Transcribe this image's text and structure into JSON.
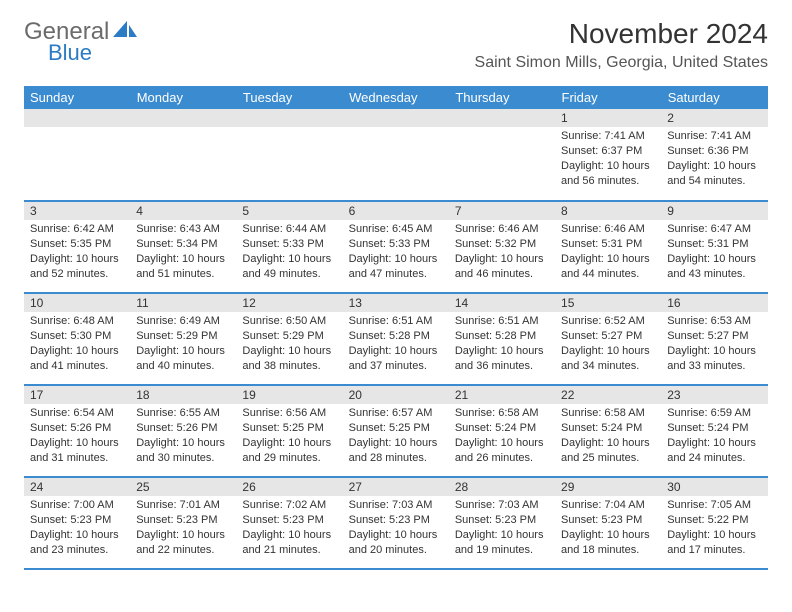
{
  "logo": {
    "general": "General",
    "blue": "Blue",
    "general_color": "#6b6b6b",
    "blue_color": "#2b7cc4",
    "icon_fill": "#2b7cc4"
  },
  "title": "November 2024",
  "location": "Saint Simon Mills, Georgia, United States",
  "colors": {
    "header_bg": "#3a8bd0",
    "header_text": "#ffffff",
    "daynum_bg": "#e6e6e6",
    "row_border": "#3a8bd0",
    "text": "#333333",
    "background": "#ffffff"
  },
  "typography": {
    "title_fontsize": 28,
    "location_fontsize": 16,
    "header_fontsize": 13,
    "daynum_fontsize": 12,
    "content_fontsize": 11
  },
  "day_headers": [
    "Sunday",
    "Monday",
    "Tuesday",
    "Wednesday",
    "Thursday",
    "Friday",
    "Saturday"
  ],
  "weeks": [
    [
      {
        "empty": true
      },
      {
        "empty": true
      },
      {
        "empty": true
      },
      {
        "empty": true
      },
      {
        "empty": true
      },
      {
        "num": "1",
        "sunrise": "7:41 AM",
        "sunset": "6:37 PM",
        "daylight": "10 hours and 56 minutes."
      },
      {
        "num": "2",
        "sunrise": "7:41 AM",
        "sunset": "6:36 PM",
        "daylight": "10 hours and 54 minutes."
      }
    ],
    [
      {
        "num": "3",
        "sunrise": "6:42 AM",
        "sunset": "5:35 PM",
        "daylight": "10 hours and 52 minutes."
      },
      {
        "num": "4",
        "sunrise": "6:43 AM",
        "sunset": "5:34 PM",
        "daylight": "10 hours and 51 minutes."
      },
      {
        "num": "5",
        "sunrise": "6:44 AM",
        "sunset": "5:33 PM",
        "daylight": "10 hours and 49 minutes."
      },
      {
        "num": "6",
        "sunrise": "6:45 AM",
        "sunset": "5:33 PM",
        "daylight": "10 hours and 47 minutes."
      },
      {
        "num": "7",
        "sunrise": "6:46 AM",
        "sunset": "5:32 PM",
        "daylight": "10 hours and 46 minutes."
      },
      {
        "num": "8",
        "sunrise": "6:46 AM",
        "sunset": "5:31 PM",
        "daylight": "10 hours and 44 minutes."
      },
      {
        "num": "9",
        "sunrise": "6:47 AM",
        "sunset": "5:31 PM",
        "daylight": "10 hours and 43 minutes."
      }
    ],
    [
      {
        "num": "10",
        "sunrise": "6:48 AM",
        "sunset": "5:30 PM",
        "daylight": "10 hours and 41 minutes."
      },
      {
        "num": "11",
        "sunrise": "6:49 AM",
        "sunset": "5:29 PM",
        "daylight": "10 hours and 40 minutes."
      },
      {
        "num": "12",
        "sunrise": "6:50 AM",
        "sunset": "5:29 PM",
        "daylight": "10 hours and 38 minutes."
      },
      {
        "num": "13",
        "sunrise": "6:51 AM",
        "sunset": "5:28 PM",
        "daylight": "10 hours and 37 minutes."
      },
      {
        "num": "14",
        "sunrise": "6:51 AM",
        "sunset": "5:28 PM",
        "daylight": "10 hours and 36 minutes."
      },
      {
        "num": "15",
        "sunrise": "6:52 AM",
        "sunset": "5:27 PM",
        "daylight": "10 hours and 34 minutes."
      },
      {
        "num": "16",
        "sunrise": "6:53 AM",
        "sunset": "5:27 PM",
        "daylight": "10 hours and 33 minutes."
      }
    ],
    [
      {
        "num": "17",
        "sunrise": "6:54 AM",
        "sunset": "5:26 PM",
        "daylight": "10 hours and 31 minutes."
      },
      {
        "num": "18",
        "sunrise": "6:55 AM",
        "sunset": "5:26 PM",
        "daylight": "10 hours and 30 minutes."
      },
      {
        "num": "19",
        "sunrise": "6:56 AM",
        "sunset": "5:25 PM",
        "daylight": "10 hours and 29 minutes."
      },
      {
        "num": "20",
        "sunrise": "6:57 AM",
        "sunset": "5:25 PM",
        "daylight": "10 hours and 28 minutes."
      },
      {
        "num": "21",
        "sunrise": "6:58 AM",
        "sunset": "5:24 PM",
        "daylight": "10 hours and 26 minutes."
      },
      {
        "num": "22",
        "sunrise": "6:58 AM",
        "sunset": "5:24 PM",
        "daylight": "10 hours and 25 minutes."
      },
      {
        "num": "23",
        "sunrise": "6:59 AM",
        "sunset": "5:24 PM",
        "daylight": "10 hours and 24 minutes."
      }
    ],
    [
      {
        "num": "24",
        "sunrise": "7:00 AM",
        "sunset": "5:23 PM",
        "daylight": "10 hours and 23 minutes."
      },
      {
        "num": "25",
        "sunrise": "7:01 AM",
        "sunset": "5:23 PM",
        "daylight": "10 hours and 22 minutes."
      },
      {
        "num": "26",
        "sunrise": "7:02 AM",
        "sunset": "5:23 PM",
        "daylight": "10 hours and 21 minutes."
      },
      {
        "num": "27",
        "sunrise": "7:03 AM",
        "sunset": "5:23 PM",
        "daylight": "10 hours and 20 minutes."
      },
      {
        "num": "28",
        "sunrise": "7:03 AM",
        "sunset": "5:23 PM",
        "daylight": "10 hours and 19 minutes."
      },
      {
        "num": "29",
        "sunrise": "7:04 AM",
        "sunset": "5:23 PM",
        "daylight": "10 hours and 18 minutes."
      },
      {
        "num": "30",
        "sunrise": "7:05 AM",
        "sunset": "5:22 PM",
        "daylight": "10 hours and 17 minutes."
      }
    ]
  ],
  "labels": {
    "sunrise": "Sunrise:",
    "sunset": "Sunset:",
    "daylight": "Daylight:"
  }
}
